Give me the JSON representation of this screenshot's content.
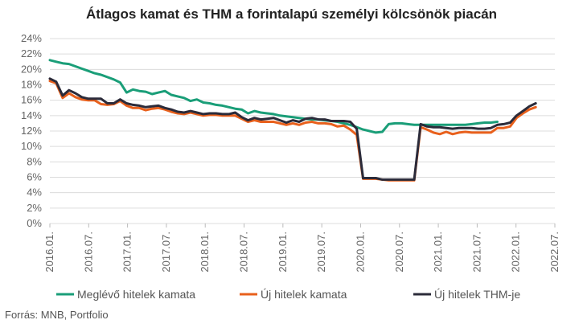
{
  "chart_data": {
    "type": "line",
    "title": "Átlagos kamat és THM a forintalapú személyi kölcsönök piacán",
    "source": "Forrás: MNB, Portfolio",
    "ylim": [
      0,
      24
    ],
    "y_ticks": [
      "0%",
      "2%",
      "4%",
      "6%",
      "8%",
      "10%",
      "12%",
      "14%",
      "16%",
      "18%",
      "20%",
      "22%",
      "24%"
    ],
    "x_tick_labels": [
      "2016.01.",
      "2016.07.",
      "2017.01.",
      "2017.07.",
      "2018.01.",
      "2018.07.",
      "2019.01.",
      "2019.07.",
      "2020.01.",
      "2020.07.",
      "2021.01.",
      "2021.07.",
      "2022.01.",
      "2022.07."
    ],
    "x_count": 80,
    "grid": "horizontal",
    "legend_position": "bottom",
    "series": [
      {
        "name": "Meglévő hitelek kamata",
        "color": "#1a9e78",
        "values": [
          21.2,
          21.0,
          20.8,
          20.7,
          20.4,
          20.1,
          19.8,
          19.5,
          19.3,
          19.0,
          18.7,
          18.3,
          17.0,
          17.4,
          17.2,
          17.1,
          16.8,
          17.0,
          17.2,
          16.7,
          16.5,
          16.3,
          15.9,
          16.1,
          15.7,
          15.6,
          15.4,
          15.3,
          15.1,
          14.9,
          14.8,
          14.3,
          14.6,
          14.4,
          14.3,
          14.2,
          14.0,
          13.9,
          13.8,
          13.7,
          13.6,
          13.5,
          13.5,
          13.4,
          13.3,
          13.2,
          13.0,
          12.8,
          12.5,
          12.2,
          12.0,
          11.8,
          11.9,
          12.9,
          13.0,
          13.0,
          12.9,
          12.8,
          12.8,
          12.8,
          12.8,
          12.8,
          12.8,
          12.8,
          12.8,
          12.8,
          12.9,
          13.0,
          13.1,
          13.1,
          13.2
        ]
      },
      {
        "name": "Új hitelek kamata",
        "color": "#e8601c",
        "values": [
          18.5,
          18.2,
          16.3,
          16.9,
          16.4,
          16.1,
          16.0,
          16.0,
          15.5,
          15.4,
          15.5,
          15.9,
          15.3,
          15.0,
          15.0,
          14.7,
          14.9,
          15.0,
          14.8,
          14.5,
          14.3,
          14.2,
          14.4,
          14.2,
          14.0,
          14.1,
          14.1,
          14.0,
          14.0,
          14.0,
          13.6,
          13.2,
          13.4,
          13.2,
          13.2,
          13.2,
          13.0,
          12.8,
          13.0,
          12.8,
          13.1,
          13.2,
          13.0,
          13.0,
          12.9,
          12.6,
          12.7,
          12.2,
          11.5,
          5.8,
          5.8,
          5.8,
          5.7,
          5.6,
          5.6,
          5.6,
          5.6,
          5.6,
          12.5,
          12.2,
          11.8,
          11.6,
          11.9,
          11.6,
          11.8,
          11.9,
          11.8,
          11.8,
          11.8,
          11.8,
          12.4,
          12.4,
          12.6,
          13.7,
          14.3,
          14.8,
          15.1
        ]
      },
      {
        "name": "Új hitelek THM-je",
        "color": "#2b2b3a",
        "values": [
          18.8,
          18.4,
          16.6,
          17.3,
          16.9,
          16.4,
          16.2,
          16.2,
          16.2,
          15.6,
          15.6,
          16.1,
          15.6,
          15.4,
          15.3,
          15.1,
          15.2,
          15.3,
          15.0,
          14.8,
          14.5,
          14.4,
          14.6,
          14.4,
          14.2,
          14.3,
          14.3,
          14.2,
          14.2,
          14.4,
          13.8,
          13.4,
          13.7,
          13.5,
          13.6,
          13.7,
          13.4,
          13.1,
          13.4,
          13.2,
          13.6,
          13.7,
          13.5,
          13.5,
          13.3,
          13.3,
          13.3,
          13.2,
          12.3,
          5.9,
          5.9,
          5.9,
          5.7,
          5.7,
          5.7,
          5.7,
          5.7,
          5.7,
          12.9,
          12.6,
          12.5,
          12.5,
          12.4,
          12.3,
          12.4,
          12.4,
          12.4,
          12.3,
          12.3,
          12.4,
          12.8,
          12.9,
          13.1,
          14.0,
          14.6,
          15.2,
          15.6
        ]
      }
    ]
  }
}
